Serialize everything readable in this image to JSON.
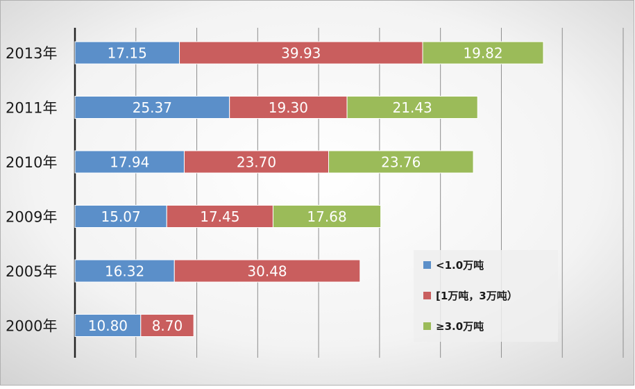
{
  "chart_data": {
    "type": "bar",
    "orientation": "horizontal",
    "stacked": true,
    "categories": [
      "2013年",
      "2011年",
      "2010年",
      "2009年",
      "2005年",
      "2000年"
    ],
    "series": [
      {
        "name": "<1.0万吨",
        "color": "#5b8fc9",
        "values": [
          17.15,
          25.37,
          17.94,
          15.07,
          16.32,
          10.8
        ],
        "labels": [
          "17.15",
          "25.37",
          "17.94",
          "15.07",
          "16.32",
          "10.80"
        ]
      },
      {
        "name": "[1万吨，3万吨）",
        "color": "#c95e5e",
        "values": [
          39.93,
          19.3,
          23.7,
          17.45,
          30.48,
          8.7
        ],
        "labels": [
          "39.93",
          "19.30",
          "23.70",
          "17.45",
          "30.48",
          "8.70"
        ]
      },
      {
        "name": "≥3.0万吨",
        "color": "#9bbb59",
        "values": [
          19.82,
          21.43,
          23.76,
          17.68,
          null,
          null
        ],
        "labels": [
          "19.82",
          "21.43",
          "23.76",
          "17.68",
          "",
          ""
        ]
      }
    ],
    "xlim": [
      0,
      90
    ],
    "x_gridline_step": 10,
    "grid": true,
    "tick_labels_x_visible": false,
    "legend_position": "bottom-right",
    "background": "gray-gradient"
  }
}
